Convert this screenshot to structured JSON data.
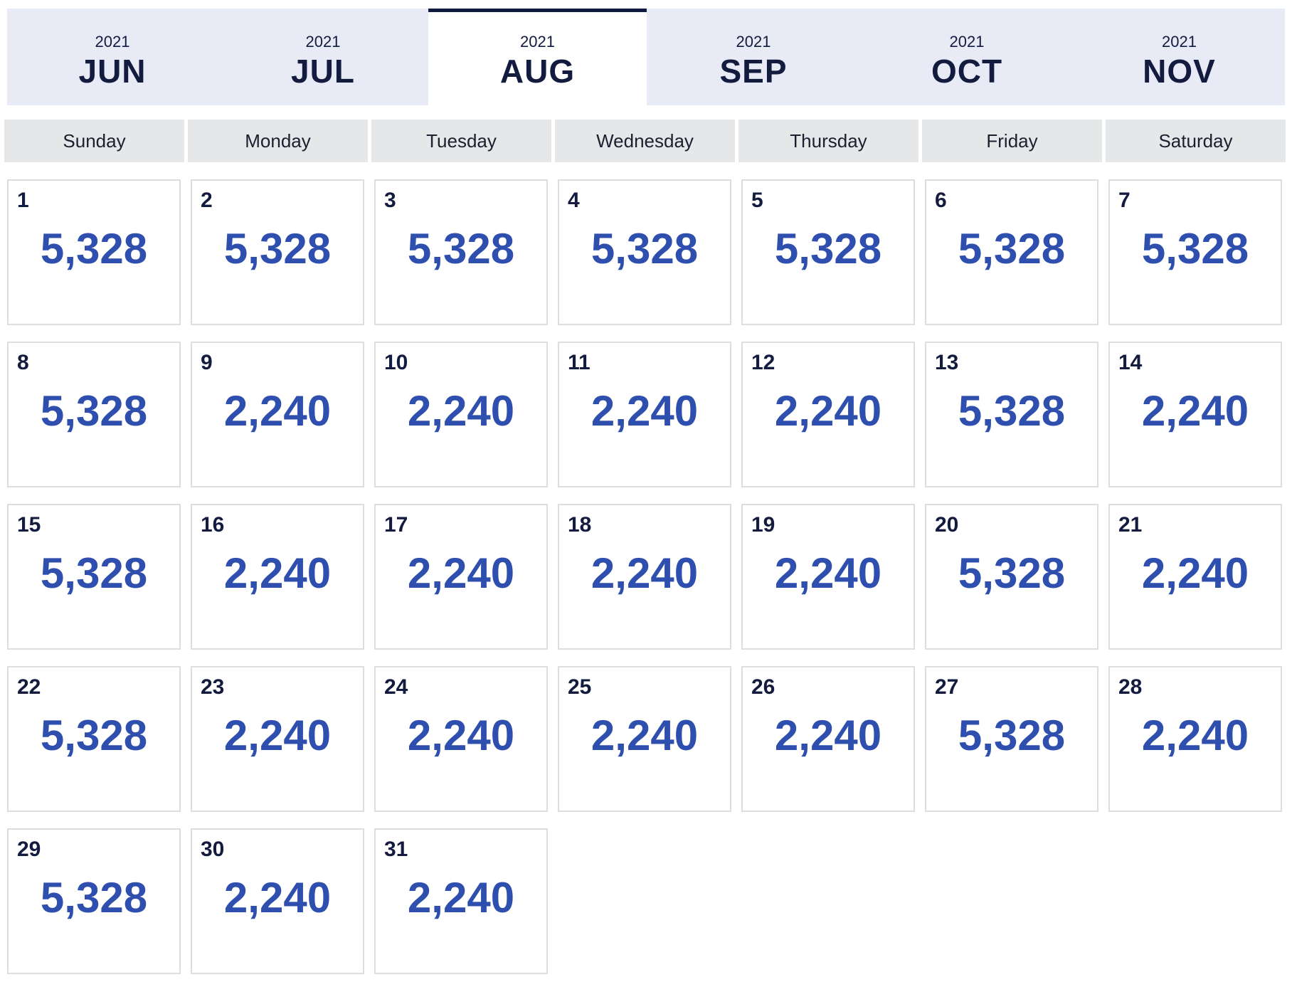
{
  "tabs": [
    {
      "year": "2021",
      "month": "JUN",
      "active": false
    },
    {
      "year": "2021",
      "month": "JUL",
      "active": false
    },
    {
      "year": "2021",
      "month": "AUG",
      "active": true
    },
    {
      "year": "2021",
      "month": "SEP",
      "active": false
    },
    {
      "year": "2021",
      "month": "OCT",
      "active": false
    },
    {
      "year": "2021",
      "month": "NOV",
      "active": false
    }
  ],
  "weekdays": [
    "Sunday",
    "Monday",
    "Tuesday",
    "Wednesday",
    "Thursday",
    "Friday",
    "Saturday"
  ],
  "colors": {
    "tab_bg": "#e8ebf6",
    "active_tab_border": "#0f1a3f",
    "price_text": "#2f4fae",
    "header_bg": "#e6e7e9"
  },
  "days": [
    {
      "day": "1",
      "points": "5,328"
    },
    {
      "day": "2",
      "points": "5,328"
    },
    {
      "day": "3",
      "points": "5,328"
    },
    {
      "day": "4",
      "points": "5,328"
    },
    {
      "day": "5",
      "points": "5,328"
    },
    {
      "day": "6",
      "points": "5,328"
    },
    {
      "day": "7",
      "points": "5,328"
    },
    {
      "day": "8",
      "points": "5,328"
    },
    {
      "day": "9",
      "points": "2,240"
    },
    {
      "day": "10",
      "points": "2,240"
    },
    {
      "day": "11",
      "points": "2,240"
    },
    {
      "day": "12",
      "points": "2,240"
    },
    {
      "day": "13",
      "points": "5,328"
    },
    {
      "day": "14",
      "points": "2,240"
    },
    {
      "day": "15",
      "points": "5,328"
    },
    {
      "day": "16",
      "points": "2,240"
    },
    {
      "day": "17",
      "points": "2,240"
    },
    {
      "day": "18",
      "points": "2,240"
    },
    {
      "day": "19",
      "points": "2,240"
    },
    {
      "day": "20",
      "points": "5,328"
    },
    {
      "day": "21",
      "points": "2,240"
    },
    {
      "day": "22",
      "points": "5,328"
    },
    {
      "day": "23",
      "points": "2,240"
    },
    {
      "day": "24",
      "points": "2,240"
    },
    {
      "day": "25",
      "points": "2,240"
    },
    {
      "day": "26",
      "points": "2,240"
    },
    {
      "day": "27",
      "points": "5,328"
    },
    {
      "day": "28",
      "points": "2,240"
    },
    {
      "day": "29",
      "points": "5,328"
    },
    {
      "day": "30",
      "points": "2,240"
    },
    {
      "day": "31",
      "points": "2,240"
    }
  ]
}
